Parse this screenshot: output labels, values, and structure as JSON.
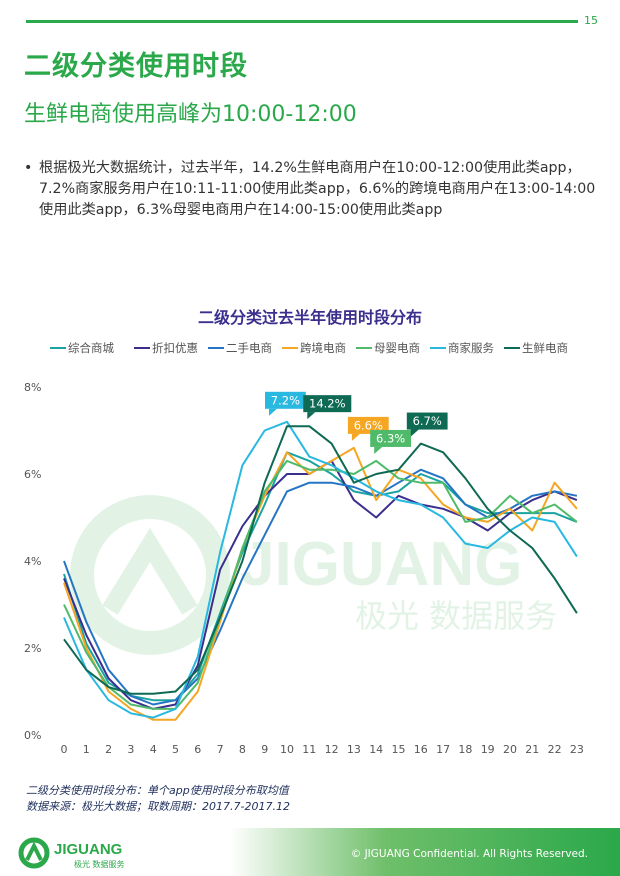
{
  "page": {
    "number": "15",
    "title": "二级分类使用时段",
    "subtitle": "生鲜电商使用高峰为10:00-12:00",
    "bullet": "根据极光大数据统计，过去半年，14.2%生鲜电商用户在10:00-12:00使用此类app，7.2%商家服务用户在10:11-11:00使用此类app，6.6%的跨境电商用户在13:00-14:00使用此类app，6.3%母婴电商用户在14:00-15:00使用此类app"
  },
  "chart_data": {
    "type": "line",
    "title": "二级分类过去半年使用时段分布",
    "x": [
      "0",
      "1",
      "2",
      "3",
      "4",
      "5",
      "6",
      "7",
      "8",
      "9",
      "10",
      "11",
      "12",
      "13",
      "14",
      "15",
      "16",
      "17",
      "18",
      "19",
      "20",
      "21",
      "22",
      "23"
    ],
    "y_ticks": [
      "0%",
      "2%",
      "4%",
      "6%",
      "8%"
    ],
    "ylim": [
      0,
      8
    ],
    "grid": false,
    "legend_position": "top",
    "series": [
      {
        "name": "综合商城",
        "color": "#1aa3a0",
        "values": [
          3.7,
          2.1,
          1.2,
          0.9,
          0.8,
          0.8,
          1.4,
          2.8,
          4.2,
          5.3,
          6.5,
          6.3,
          6.0,
          5.6,
          5.5,
          5.6,
          6.0,
          5.8,
          5.3,
          5.1,
          5.1,
          5.1,
          5.1,
          4.9
        ]
      },
      {
        "name": "折扣优惠",
        "color": "#3b2f8e",
        "values": [
          3.6,
          2.3,
          1.3,
          0.8,
          0.6,
          0.7,
          1.6,
          3.8,
          4.8,
          5.5,
          6.0,
          6.0,
          6.3,
          5.4,
          5.0,
          5.5,
          5.3,
          5.2,
          5.0,
          4.7,
          5.1,
          5.4,
          5.6,
          5.4
        ]
      },
      {
        "name": "二手电商",
        "color": "#2575c4",
        "values": [
          4.0,
          2.6,
          1.5,
          0.9,
          0.7,
          0.8,
          1.3,
          2.4,
          3.6,
          4.6,
          5.6,
          5.8,
          5.8,
          5.7,
          5.5,
          5.8,
          6.1,
          5.9,
          5.3,
          5.0,
          5.2,
          5.5,
          5.6,
          5.5
        ]
      },
      {
        "name": "跨境电商",
        "color": "#f5a623",
        "values": [
          3.5,
          2.0,
          1.0,
          0.6,
          0.35,
          0.35,
          1.0,
          2.6,
          4.3,
          5.5,
          6.5,
          6.0,
          6.3,
          6.6,
          5.4,
          6.1,
          5.9,
          5.3,
          5.0,
          4.9,
          5.2,
          4.7,
          5.8,
          5.2
        ]
      },
      {
        "name": "母婴电商",
        "color": "#4fbb6a",
        "values": [
          3.0,
          1.9,
          1.1,
          0.7,
          0.6,
          0.6,
          1.2,
          2.7,
          4.3,
          5.6,
          6.3,
          6.1,
          6.1,
          6.0,
          6.3,
          5.9,
          5.8,
          5.8,
          4.9,
          5.0,
          5.5,
          5.1,
          5.3,
          4.9
        ]
      },
      {
        "name": "商家服务",
        "color": "#29b8e0",
        "values": [
          2.7,
          1.5,
          0.8,
          0.5,
          0.4,
          0.6,
          1.8,
          4.2,
          6.2,
          7.0,
          7.2,
          6.4,
          6.2,
          5.9,
          5.6,
          5.4,
          5.3,
          5.0,
          4.4,
          4.3,
          4.7,
          5.0,
          4.9,
          4.1
        ]
      },
      {
        "name": "生鲜电商",
        "color": "#0e6a53",
        "values": [
          2.2,
          1.5,
          1.1,
          0.95,
          0.95,
          1.0,
          1.5,
          2.7,
          4.0,
          5.8,
          7.1,
          7.1,
          6.7,
          5.8,
          6.0,
          6.1,
          6.7,
          6.5,
          5.9,
          5.2,
          4.7,
          4.3,
          3.6,
          2.8
        ]
      }
    ],
    "annotations": [
      {
        "text": "7.2%",
        "x": "10",
        "y": 7.2,
        "color": "#29b8e0"
      },
      {
        "text": "14.2%",
        "x": "11",
        "y": 7.1,
        "color": "#0e6a53"
      },
      {
        "text": "6.6%",
        "x": "13",
        "y": 6.6,
        "color": "#f5a623"
      },
      {
        "text": "6.3%",
        "x": "14",
        "y": 6.3,
        "color": "#4fbb6a"
      },
      {
        "text": "6.7%",
        "x": "16",
        "y": 6.7,
        "color": "#0e6a53"
      }
    ]
  },
  "notes": {
    "definition": "二级分类使用时段分布：单个app使用时段分布取均值",
    "source": "数据来源：极光大数据；取数周期：2017.7-2017.12"
  },
  "watermark": {
    "brand": "JIGUANG",
    "tagline": "极光 数据服务"
  },
  "footer": {
    "logo_text": "JIGUANG",
    "logo_tagline": "极光 数据服务",
    "copyright": "© JIGUANG Confidential. All Rights Reserved."
  },
  "colors": {
    "brand_green": "#2aa84a",
    "chart_title": "#3b2f8e",
    "note_text": "#1f2f5c"
  }
}
